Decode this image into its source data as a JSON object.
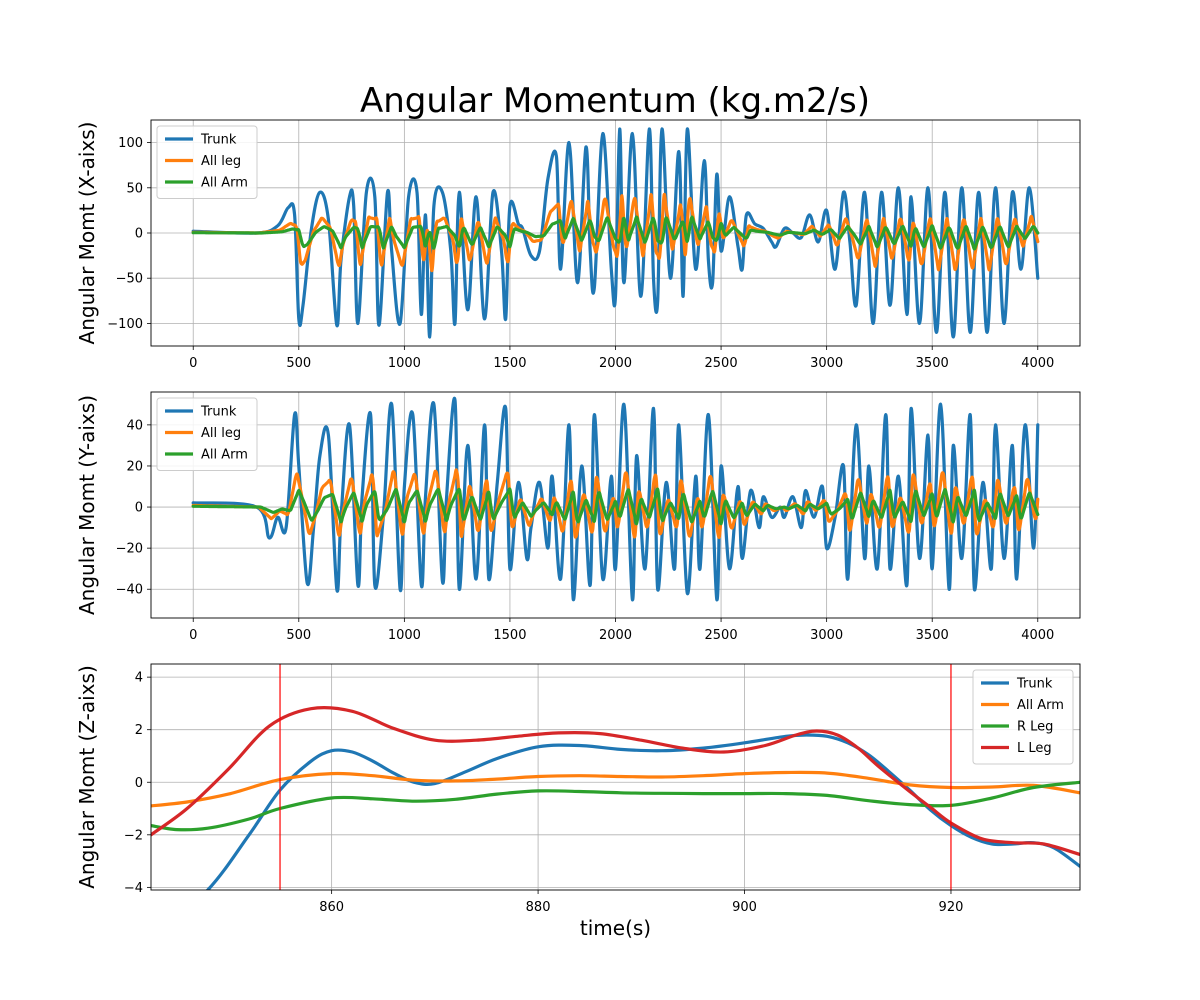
{
  "figure": {
    "title": "Angular Momentum (kg.m2/s)"
  },
  "colors": {
    "trunk": "#1f77b4",
    "orange": "#ff7f0e",
    "green": "#2ca02c",
    "red": "#d62728",
    "grid": "#b0b0b0",
    "marker": "#ff0000"
  },
  "chart_data": [
    {
      "type": "line",
      "ylabel": "Angular Momt (X-aixs)",
      "xlim": [
        -200,
        4200
      ],
      "ylim": [
        -125,
        125
      ],
      "xticks": [
        0,
        500,
        1000,
        1500,
        2000,
        2500,
        3000,
        3500,
        4000
      ],
      "yticks": [
        -100,
        -50,
        0,
        50,
        100
      ],
      "grid": true,
      "legend_position": "top-left",
      "series": [
        {
          "name": "Trunk",
          "amp": 1.0,
          "smooth": 2,
          "phase": 0,
          "x": [
            0,
            300,
            400,
            450,
            480,
            500,
            520,
            560,
            600,
            640,
            680,
            700,
            740,
            760,
            780,
            820,
            860,
            880,
            920,
            940,
            980,
            1020,
            1060,
            1080,
            1100,
            1120,
            1140,
            1180,
            1220,
            1240,
            1260,
            1300,
            1340,
            1380,
            1420,
            1460,
            1480,
            1500,
            1540,
            1560,
            1600,
            1640,
            1680,
            1720,
            1740,
            1780,
            1820,
            1860,
            1880,
            1900,
            1940,
            1980,
            2000,
            2020,
            2040,
            2080,
            2120,
            2160,
            2180,
            2200,
            2220,
            2260,
            2300,
            2320,
            2340,
            2380,
            2420,
            2440,
            2460,
            2480,
            2500,
            2540,
            2580,
            2600,
            2620,
            2660,
            2700,
            2740,
            2760,
            2800,
            2840,
            2880,
            2920,
            2960,
            3000,
            3040,
            3080,
            3110,
            3140,
            3180,
            3220,
            3260,
            3300,
            3340,
            3380,
            3400,
            3440,
            3480,
            3520,
            3560,
            3600,
            3640,
            3680,
            3720,
            3760,
            3800,
            3840,
            3880,
            3920,
            3960,
            4000
          ],
          "y": [
            2,
            0,
            8,
            28,
            20,
            -95,
            -80,
            5,
            45,
            15,
            -102,
            -30,
            40,
            30,
            -100,
            45,
            40,
            -102,
            45,
            -20,
            -100,
            40,
            45,
            -90,
            20,
            -115,
            30,
            45,
            -20,
            -100,
            45,
            -85,
            40,
            -95,
            45,
            -20,
            -95,
            30,
            10,
            5,
            -25,
            -20,
            60,
            85,
            -40,
            100,
            -55,
            95,
            -20,
            -60,
            110,
            -40,
            -70,
            115,
            -55,
            110,
            -70,
            115,
            -50,
            -75,
            115,
            -50,
            90,
            -70,
            115,
            -40,
            80,
            -30,
            -55,
            65,
            -20,
            40,
            -15,
            -40,
            20,
            10,
            5,
            -10,
            -15,
            5,
            0,
            -5,
            20,
            -10,
            25,
            -40,
            45,
            -10,
            -80,
            45,
            -100,
            45,
            -80,
            50,
            -90,
            40,
            -100,
            50,
            -110,
            45,
            -115,
            50,
            -110,
            45,
            -110,
            50,
            -100,
            45,
            -40,
            50,
            -50
          ]
        },
        {
          "name": "All leg",
          "amp": 0.38,
          "smooth": 3,
          "phase": 10
        },
        {
          "name": "All Arm",
          "amp": 0.16,
          "smooth": 4,
          "phase": 20
        }
      ]
    },
    {
      "type": "line",
      "ylabel": "Angular Momt (Y-aixs)",
      "xlim": [
        -200,
        4200
      ],
      "ylim": [
        -54,
        56
      ],
      "xticks": [
        0,
        500,
        1000,
        1500,
        2000,
        2500,
        3000,
        3500,
        4000
      ],
      "yticks": [
        -40,
        -20,
        0,
        20,
        40
      ],
      "grid": true,
      "legend_position": "top-left",
      "series": [
        {
          "name": "Trunk",
          "amp": 1.0,
          "smooth": 2,
          "phase": 0,
          "x": [
            0,
            300,
            360,
            400,
            440,
            480,
            500,
            540,
            570,
            600,
            640,
            680,
            700,
            740,
            780,
            800,
            840,
            860,
            900,
            940,
            980,
            1000,
            1040,
            1080,
            1100,
            1140,
            1180,
            1200,
            1240,
            1260,
            1300,
            1340,
            1380,
            1400,
            1440,
            1480,
            1500,
            1540,
            1580,
            1600,
            1640,
            1680,
            1700,
            1740,
            1780,
            1800,
            1840,
            1880,
            1900,
            1940,
            1980,
            2000,
            2040,
            2080,
            2100,
            2140,
            2180,
            2200,
            2240,
            2280,
            2300,
            2340,
            2380,
            2400,
            2440,
            2480,
            2500,
            2540,
            2580,
            2600,
            2640,
            2680,
            2700,
            2740,
            2780,
            2800,
            2840,
            2880,
            2900,
            2940,
            2980,
            3000,
            3040,
            3080,
            3100,
            3140,
            3180,
            3200,
            3240,
            3280,
            3300,
            3340,
            3380,
            3400,
            3440,
            3480,
            3500,
            3540,
            3580,
            3600,
            3640,
            3680,
            3700,
            3740,
            3780,
            3800,
            3840,
            3880,
            3900,
            3940,
            3980,
            4000
          ],
          "y": [
            2,
            0,
            -15,
            -5,
            -10,
            45,
            20,
            -37,
            -10,
            25,
            35,
            -40,
            -5,
            40,
            -38,
            5,
            45,
            -38,
            -5,
            50,
            -40,
            10,
            45,
            -38,
            5,
            50,
            -36,
            5,
            52,
            -40,
            30,
            -35,
            40,
            -35,
            12,
            48,
            -30,
            12,
            -25,
            -10,
            12,
            -20,
            15,
            -35,
            40,
            -45,
            20,
            -38,
            45,
            -35,
            15,
            -30,
            50,
            -45,
            25,
            -30,
            48,
            -40,
            12,
            -30,
            40,
            -42,
            15,
            -30,
            45,
            -45,
            20,
            -30,
            10,
            -25,
            8,
            -10,
            5,
            -5,
            0,
            -5,
            5,
            -10,
            8,
            -5,
            10,
            -20,
            -5,
            20,
            -35,
            40,
            -25,
            20,
            -30,
            45,
            -30,
            15,
            -38,
            48,
            -25,
            35,
            -30,
            50,
            -40,
            30,
            -25,
            45,
            -40,
            12,
            -30,
            40,
            -25,
            30,
            -35,
            40,
            -20,
            40
          ]
        },
        {
          "name": "All leg",
          "amp": 0.38,
          "smooth": 3,
          "phase": 10
        },
        {
          "name": "All Arm",
          "amp": 0.18,
          "smooth": 4,
          "phase": 20
        }
      ]
    },
    {
      "type": "line",
      "xlabel": "time(s)",
      "ylabel": "Angular Momt (Z-aixs)",
      "xlim": [
        842.5,
        932.5
      ],
      "ylim": [
        -4.1,
        4.5
      ],
      "xticks": [
        860,
        880,
        900,
        920
      ],
      "yticks": [
        -4,
        -2,
        0,
        2,
        4
      ],
      "grid": true,
      "legend_position": "top-right",
      "vlines": [
        855,
        920
      ],
      "series": [
        {
          "name": "Trunk",
          "x": [
            842.5,
            848,
            852,
            855,
            858,
            860,
            862,
            864,
            866,
            868,
            870,
            873,
            876,
            880,
            884,
            888,
            892,
            896,
            900,
            904,
            906,
            908,
            910,
            912,
            914,
            916,
            918,
            920,
            922,
            924,
            926,
            928,
            930,
            932.5
          ],
          "y": [
            -6,
            -4.1,
            -2,
            -0.3,
            0.8,
            1.2,
            1.15,
            0.8,
            0.35,
            0.0,
            -0.05,
            0.4,
            0.9,
            1.35,
            1.4,
            1.25,
            1.2,
            1.3,
            1.5,
            1.75,
            1.8,
            1.75,
            1.5,
            1.05,
            0.4,
            -0.3,
            -1.05,
            -1.65,
            -2.1,
            -2.35,
            -2.35,
            -2.3,
            -2.5,
            -3.2
          ]
        },
        {
          "name": "All Arm",
          "x": [
            842.5,
            846,
            850,
            855,
            860,
            864,
            868,
            872,
            876,
            880,
            884,
            888,
            892,
            896,
            900,
            904,
            908,
            912,
            916,
            920,
            924,
            928,
            932.5
          ],
          "y": [
            -0.9,
            -0.75,
            -0.45,
            0.1,
            0.33,
            0.25,
            0.08,
            0.05,
            0.12,
            0.22,
            0.25,
            0.22,
            0.2,
            0.25,
            0.33,
            0.37,
            0.35,
            0.15,
            -0.1,
            -0.2,
            -0.18,
            -0.12,
            -0.4
          ]
        },
        {
          "name": "R Leg",
          "x": [
            842.5,
            845,
            848,
            852,
            855,
            860,
            864,
            868,
            872,
            876,
            880,
            884,
            888,
            892,
            896,
            900,
            904,
            908,
            912,
            916,
            920,
            924,
            928,
            932.5
          ],
          "y": [
            -1.65,
            -1.8,
            -1.75,
            -1.4,
            -1.0,
            -0.6,
            -0.63,
            -0.72,
            -0.65,
            -0.45,
            -0.33,
            -0.35,
            -0.4,
            -0.42,
            -0.43,
            -0.43,
            -0.43,
            -0.5,
            -0.7,
            -0.85,
            -0.88,
            -0.6,
            -0.2,
            0.0
          ]
        },
        {
          "name": "L Leg",
          "x": [
            842.5,
            846,
            850,
            854,
            858,
            862,
            866,
            870,
            874,
            878,
            882,
            886,
            890,
            894,
            898,
            902,
            905,
            907,
            909,
            911,
            913,
            916,
            918,
            920,
            923,
            926,
            929,
            932.5
          ],
          "y": [
            -2.0,
            -1.0,
            0.5,
            2.15,
            2.8,
            2.7,
            2.05,
            1.6,
            1.6,
            1.75,
            1.88,
            1.85,
            1.6,
            1.3,
            1.15,
            1.4,
            1.8,
            1.95,
            1.8,
            1.3,
            0.6,
            -0.35,
            -0.95,
            -1.55,
            -2.15,
            -2.3,
            -2.35,
            -2.75
          ]
        }
      ]
    }
  ]
}
